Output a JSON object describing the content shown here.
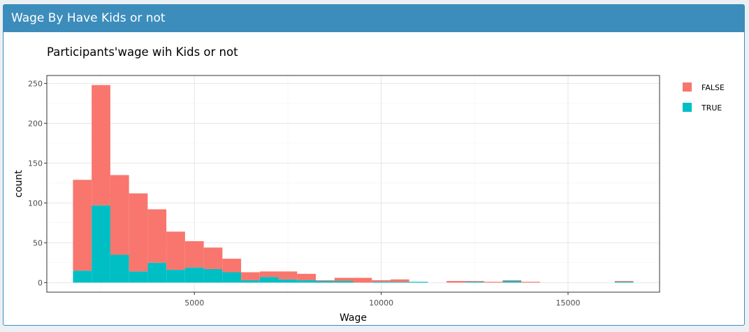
{
  "panel": {
    "title": "Wage By Have Kids or not"
  },
  "colors": {
    "header_bg": "#3c8dbc",
    "false_fill": "#F8766D",
    "true_fill": "#00BFC4"
  },
  "chart_data": {
    "type": "bar",
    "subtype": "stacked-histogram",
    "title": "Participants'wage wih Kids or not",
    "xlabel": "Wage",
    "ylabel": "count",
    "xlim": [
      1050,
      17450
    ],
    "ylim": [
      -12,
      260
    ],
    "xticks": [
      5000,
      10000,
      15000
    ],
    "xtick_labels": [
      "5000",
      "10000",
      "15000"
    ],
    "yticks": [
      0,
      50,
      100,
      150,
      200,
      250
    ],
    "ytick_labels": [
      "0",
      "50",
      "100",
      "150",
      "200",
      "250"
    ],
    "grid": true,
    "legend_position": "right",
    "legend": [
      {
        "label": "FALSE",
        "color": "#F8766D"
      },
      {
        "label": "TRUE",
        "color": "#00BFC4"
      }
    ],
    "bin_width": 500,
    "bin_starts": [
      1750,
      2250,
      2750,
      3250,
      3750,
      4250,
      4750,
      5250,
      5750,
      6250,
      6750,
      7250,
      7750,
      8250,
      8750,
      9250,
      9750,
      10250,
      10750,
      11250,
      11750,
      12250,
      12750,
      13250,
      13750,
      14250,
      14750,
      15250,
      15750,
      16250
    ],
    "series": [
      {
        "name": "TRUE",
        "values": [
          15,
          97,
          35,
          14,
          25,
          16,
          19,
          17,
          13,
          3,
          7,
          4,
          3,
          2,
          2,
          0,
          1,
          1,
          1,
          0,
          0,
          1,
          0,
          2,
          0,
          0,
          0,
          0,
          0,
          1
        ]
      },
      {
        "name": "FALSE",
        "values": [
          114,
          151,
          100,
          98,
          67,
          48,
          33,
          27,
          17,
          10,
          7,
          10,
          8,
          1,
          4,
          6,
          2,
          3,
          0,
          0,
          2,
          1,
          1,
          1,
          1,
          0,
          0,
          0,
          0,
          1
        ]
      }
    ]
  }
}
